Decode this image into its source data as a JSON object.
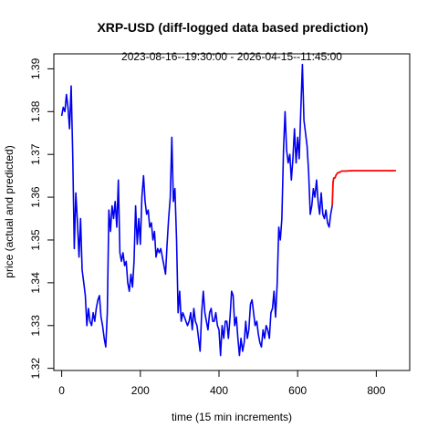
{
  "chart_data": {
    "type": "line",
    "title": "XRP-USD (diff-logged data based prediction)",
    "subtitle": "2023-08-16--19:30:00  -  2026-04-15--11:45:00",
    "xlabel": "time (15 min increments)",
    "ylabel": "price (actual and predicted)",
    "xlim": [
      -20,
      885
    ],
    "ylim": [
      1.3195,
      1.3935
    ],
    "x_ticks": [
      0,
      200,
      400,
      600,
      800
    ],
    "y_ticks": [
      1.32,
      1.33,
      1.34,
      1.35,
      1.36,
      1.37,
      1.38,
      1.39
    ],
    "grid": false,
    "series": [
      {
        "color": "#0000ee",
        "points": [
          [
            0,
            1.379
          ],
          [
            4,
            1.381
          ],
          [
            8,
            1.38
          ],
          [
            12,
            1.384
          ],
          [
            16,
            1.381
          ],
          [
            20,
            1.376
          ],
          [
            24,
            1.386
          ],
          [
            28,
            1.37
          ],
          [
            32,
            1.348
          ],
          [
            36,
            1.361
          ],
          [
            40,
            1.354
          ],
          [
            44,
            1.346
          ],
          [
            48,
            1.355
          ],
          [
            52,
            1.343
          ],
          [
            56,
            1.34
          ],
          [
            60,
            1.337
          ],
          [
            64,
            1.33
          ],
          [
            68,
            1.334
          ],
          [
            72,
            1.331
          ],
          [
            76,
            1.33
          ],
          [
            80,
            1.333
          ],
          [
            84,
            1.331
          ],
          [
            88,
            1.334
          ],
          [
            92,
            1.336
          ],
          [
            96,
            1.337
          ],
          [
            100,
            1.332
          ],
          [
            104,
            1.33
          ],
          [
            108,
            1.327
          ],
          [
            112,
            1.325
          ],
          [
            116,
            1.333
          ],
          [
            120,
            1.357
          ],
          [
            124,
            1.352
          ],
          [
            128,
            1.358
          ],
          [
            132,
            1.355
          ],
          [
            136,
            1.359
          ],
          [
            140,
            1.353
          ],
          [
            144,
            1.364
          ],
          [
            148,
            1.347
          ],
          [
            152,
            1.345
          ],
          [
            156,
            1.347
          ],
          [
            160,
            1.344
          ],
          [
            164,
            1.345
          ],
          [
            168,
            1.34
          ],
          [
            172,
            1.338
          ],
          [
            176,
            1.342
          ],
          [
            180,
            1.339
          ],
          [
            184,
            1.345
          ],
          [
            188,
            1.358
          ],
          [
            192,
            1.349
          ],
          [
            196,
            1.355
          ],
          [
            200,
            1.349
          ],
          [
            204,
            1.36
          ],
          [
            208,
            1.365
          ],
          [
            212,
            1.359
          ],
          [
            216,
            1.356
          ],
          [
            220,
            1.357
          ],
          [
            224,
            1.353
          ],
          [
            228,
            1.354
          ],
          [
            232,
            1.35
          ],
          [
            236,
            1.352
          ],
          [
            240,
            1.346
          ],
          [
            244,
            1.348
          ],
          [
            248,
            1.347
          ],
          [
            252,
            1.348
          ],
          [
            256,
            1.346
          ],
          [
            260,
            1.344
          ],
          [
            264,
            1.342
          ],
          [
            268,
            1.349
          ],
          [
            272,
            1.355
          ],
          [
            276,
            1.36
          ],
          [
            280,
            1.374
          ],
          [
            284,
            1.359
          ],
          [
            288,
            1.362
          ],
          [
            292,
            1.35
          ],
          [
            296,
            1.333
          ],
          [
            300,
            1.338
          ],
          [
            304,
            1.331
          ],
          [
            308,
            1.333
          ],
          [
            312,
            1.332
          ],
          [
            316,
            1.331
          ],
          [
            320,
            1.33
          ],
          [
            324,
            1.331
          ],
          [
            328,
            1.333
          ],
          [
            332,
            1.329
          ],
          [
            336,
            1.334
          ],
          [
            340,
            1.331
          ],
          [
            344,
            1.33
          ],
          [
            348,
            1.327
          ],
          [
            352,
            1.324
          ],
          [
            356,
            1.333
          ],
          [
            360,
            1.338
          ],
          [
            364,
            1.333
          ],
          [
            368,
            1.331
          ],
          [
            372,
            1.329
          ],
          [
            376,
            1.333
          ],
          [
            380,
            1.334
          ],
          [
            384,
            1.331
          ],
          [
            388,
            1.331
          ],
          [
            392,
            1.333
          ],
          [
            396,
            1.33
          ],
          [
            400,
            1.329
          ],
          [
            404,
            1.323
          ],
          [
            408,
            1.33
          ],
          [
            412,
            1.327
          ],
          [
            416,
            1.331
          ],
          [
            420,
            1.331
          ],
          [
            424,
            1.327
          ],
          [
            428,
            1.332
          ],
          [
            432,
            1.338
          ],
          [
            436,
            1.337
          ],
          [
            440,
            1.33
          ],
          [
            444,
            1.332
          ],
          [
            448,
            1.327
          ],
          [
            452,
            1.323
          ],
          [
            456,
            1.327
          ],
          [
            460,
            1.324
          ],
          [
            464,
            1.326
          ],
          [
            468,
            1.331
          ],
          [
            472,
            1.327
          ],
          [
            476,
            1.329
          ],
          [
            480,
            1.335
          ],
          [
            484,
            1.336
          ],
          [
            488,
            1.333
          ],
          [
            492,
            1.33
          ],
          [
            496,
            1.331
          ],
          [
            500,
            1.328
          ],
          [
            504,
            1.326
          ],
          [
            508,
            1.325
          ],
          [
            512,
            1.329
          ],
          [
            516,
            1.327
          ],
          [
            520,
            1.33
          ],
          [
            524,
            1.329
          ],
          [
            528,
            1.327
          ],
          [
            532,
            1.333
          ],
          [
            536,
            1.334
          ],
          [
            540,
            1.338
          ],
          [
            544,
            1.332
          ],
          [
            548,
            1.34
          ],
          [
            552,
            1.353
          ],
          [
            556,
            1.35
          ],
          [
            560,
            1.355
          ],
          [
            564,
            1.371
          ],
          [
            568,
            1.38
          ],
          [
            572,
            1.371
          ],
          [
            576,
            1.368
          ],
          [
            580,
            1.37
          ],
          [
            584,
            1.364
          ],
          [
            588,
            1.369
          ],
          [
            592,
            1.376
          ],
          [
            596,
            1.368
          ],
          [
            600,
            1.374
          ],
          [
            604,
            1.369
          ],
          [
            608,
            1.38
          ],
          [
            612,
            1.391
          ],
          [
            616,
            1.378
          ],
          [
            620,
            1.375
          ],
          [
            624,
            1.372
          ],
          [
            628,
            1.366
          ],
          [
            632,
            1.356
          ],
          [
            636,
            1.358
          ],
          [
            640,
            1.362
          ],
          [
            644,
            1.36
          ],
          [
            648,
            1.364
          ],
          [
            652,
            1.359
          ],
          [
            656,
            1.356
          ],
          [
            660,
            1.361
          ],
          [
            664,
            1.356
          ],
          [
            668,
            1.355
          ],
          [
            672,
            1.357
          ],
          [
            676,
            1.354
          ],
          [
            680,
            1.353
          ],
          [
            684,
            1.356
          ],
          [
            688,
            1.358
          ]
        ]
      },
      {
        "color": "#ff0000",
        "points": [
          [
            688,
            1.358
          ],
          [
            690,
            1.3635
          ],
          [
            692,
            1.3645
          ],
          [
            695,
            1.3645
          ],
          [
            698,
            1.3652
          ],
          [
            702,
            1.3657
          ],
          [
            706,
            1.3658
          ],
          [
            712,
            1.3661
          ],
          [
            720,
            1.3661
          ],
          [
            740,
            1.3662
          ],
          [
            760,
            1.3662
          ],
          [
            800,
            1.3662
          ],
          [
            850,
            1.3662
          ]
        ]
      }
    ]
  }
}
